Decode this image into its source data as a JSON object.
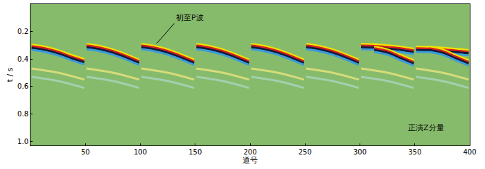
{
  "chart_data": {
    "type": "line",
    "color": "#86bb6c",
    "x_label": "道号",
    "y_label": "t / s",
    "xlim": [
      0,
      400
    ],
    "ylim": [
      1.03,
      0
    ],
    "xticks": [
      50,
      100,
      150,
      200,
      250,
      300,
      350,
      400
    ],
    "yticks": [
      0.2,
      0.4,
      0.6,
      0.8,
      {
        "value": 1,
        "label": "1.0"
      }
    ],
    "grid": false,
    "annotations": [
      {
        "text": "初至P波",
        "x": 115,
        "y": 0.286,
        "text_x": 131,
        "text_y": 0.14
      },
      {
        "text": "正演Z分量",
        "x": 360,
        "y": 0.9
      }
    ],
    "series": [
      {
        "color": "#d6dc7a",
        "x": [
          1,
          25,
          49
        ],
        "values": [
          0.47,
          0.5,
          0.55
        ]
      },
      {
        "color": "#a3d0ae",
        "x": [
          1,
          25,
          49
        ],
        "values": [
          0.53,
          0.56,
          0.61
        ]
      },
      {
        "color": "#d6dc7a",
        "x": [
          51,
          75,
          99
        ],
        "values": [
          0.47,
          0.5,
          0.55
        ]
      },
      {
        "color": "#a3d0ae",
        "x": [
          51,
          75,
          99
        ],
        "values": [
          0.53,
          0.56,
          0.61
        ]
      },
      {
        "color": "#d6dc7a",
        "x": [
          101,
          125,
          149
        ],
        "values": [
          0.47,
          0.5,
          0.55
        ]
      },
      {
        "color": "#a3d0ae",
        "x": [
          101,
          125,
          149
        ],
        "values": [
          0.53,
          0.56,
          0.61
        ]
      },
      {
        "color": "#d6dc7a",
        "x": [
          151,
          175,
          199
        ],
        "values": [
          0.47,
          0.5,
          0.55
        ]
      },
      {
        "color": "#a3d0ae",
        "x": [
          151,
          175,
          199
        ],
        "values": [
          0.53,
          0.56,
          0.61
        ]
      },
      {
        "color": "#d6dc7a",
        "x": [
          201,
          225,
          249
        ],
        "values": [
          0.47,
          0.5,
          0.55
        ]
      },
      {
        "color": "#a3d0ae",
        "x": [
          201,
          225,
          249
        ],
        "values": [
          0.53,
          0.56,
          0.61
        ]
      },
      {
        "color": "#d6dc7a",
        "x": [
          251,
          275,
          299
        ],
        "values": [
          0.47,
          0.5,
          0.55
        ]
      },
      {
        "color": "#a3d0ae",
        "x": [
          251,
          275,
          299
        ],
        "values": [
          0.53,
          0.56,
          0.61
        ]
      },
      {
        "color": "#d6dc7a",
        "x": [
          301,
          325,
          349
        ],
        "values": [
          0.47,
          0.5,
          0.55
        ]
      },
      {
        "color": "#a3d0ae",
        "x": [
          301,
          325,
          349
        ],
        "values": [
          0.53,
          0.56,
          0.61
        ]
      },
      {
        "color": "#d6dc7a",
        "x": [
          351,
          375,
          399
        ],
        "values": [
          0.47,
          0.5,
          0.55
        ]
      },
      {
        "color": "#a3d0ae",
        "x": [
          351,
          375,
          399
        ],
        "values": [
          0.53,
          0.56,
          0.61
        ]
      },
      {
        "color": "#f2e200",
        "x": [
          1,
          13,
          25,
          37,
          49
        ],
        "values": [
          0.295,
          0.31,
          0.335,
          0.37,
          0.4
        ]
      },
      {
        "color": "#d42020",
        "x": [
          1,
          13,
          25,
          37,
          49
        ],
        "values": [
          0.307,
          0.322,
          0.347,
          0.382,
          0.412
        ]
      },
      {
        "color": "#121a3a",
        "x": [
          1,
          13,
          25,
          37,
          49
        ],
        "values": [
          0.319,
          0.334,
          0.359,
          0.394,
          0.424
        ]
      },
      {
        "color": "#3c9bd8",
        "x": [
          1,
          13,
          25,
          37,
          49
        ],
        "values": [
          0.333,
          0.348,
          0.373,
          0.408,
          0.438
        ]
      },
      {
        "color": "#f2e200",
        "x": [
          51,
          63,
          75,
          87,
          99
        ],
        "values": [
          0.29,
          0.305,
          0.33,
          0.365,
          0.405
        ]
      },
      {
        "color": "#d42020",
        "x": [
          51,
          63,
          75,
          87,
          99
        ],
        "values": [
          0.302,
          0.317,
          0.342,
          0.377,
          0.417
        ]
      },
      {
        "color": "#121a3a",
        "x": [
          51,
          63,
          75,
          87,
          99
        ],
        "values": [
          0.314,
          0.329,
          0.354,
          0.389,
          0.429
        ]
      },
      {
        "color": "#3c9bd8",
        "x": [
          51,
          63,
          75,
          87,
          99
        ],
        "values": [
          0.328,
          0.343,
          0.368,
          0.403,
          0.443
        ]
      },
      {
        "color": "#f2e200",
        "x": [
          101,
          113,
          125,
          137,
          149
        ],
        "values": [
          0.29,
          0.305,
          0.33,
          0.365,
          0.405
        ]
      },
      {
        "color": "#d42020",
        "x": [
          101,
          113,
          125,
          137,
          149
        ],
        "values": [
          0.302,
          0.317,
          0.342,
          0.377,
          0.417
        ]
      },
      {
        "color": "#121a3a",
        "x": [
          101,
          113,
          125,
          137,
          149
        ],
        "values": [
          0.314,
          0.329,
          0.354,
          0.389,
          0.429
        ]
      },
      {
        "color": "#3c9bd8",
        "x": [
          101,
          113,
          125,
          137,
          149
        ],
        "values": [
          0.328,
          0.343,
          0.368,
          0.403,
          0.443
        ]
      },
      {
        "color": "#f2e200",
        "x": [
          151,
          163,
          175,
          187,
          199
        ],
        "values": [
          0.29,
          0.305,
          0.33,
          0.365,
          0.405
        ]
      },
      {
        "color": "#d42020",
        "x": [
          151,
          163,
          175,
          187,
          199
        ],
        "values": [
          0.302,
          0.317,
          0.342,
          0.377,
          0.417
        ]
      },
      {
        "color": "#121a3a",
        "x": [
          151,
          163,
          175,
          187,
          199
        ],
        "values": [
          0.314,
          0.329,
          0.354,
          0.389,
          0.429
        ]
      },
      {
        "color": "#3c9bd8",
        "x": [
          151,
          163,
          175,
          187,
          199
        ],
        "values": [
          0.328,
          0.343,
          0.368,
          0.403,
          0.443
        ]
      },
      {
        "color": "#f2e200",
        "x": [
          201,
          213,
          225,
          237,
          249
        ],
        "values": [
          0.29,
          0.305,
          0.33,
          0.365,
          0.405
        ]
      },
      {
        "color": "#d42020",
        "x": [
          201,
          213,
          225,
          237,
          249
        ],
        "values": [
          0.302,
          0.317,
          0.342,
          0.377,
          0.417
        ]
      },
      {
        "color": "#121a3a",
        "x": [
          201,
          213,
          225,
          237,
          249
        ],
        "values": [
          0.314,
          0.329,
          0.354,
          0.389,
          0.429
        ]
      },
      {
        "color": "#3c9bd8",
        "x": [
          201,
          213,
          225,
          237,
          249
        ],
        "values": [
          0.328,
          0.343,
          0.368,
          0.403,
          0.443
        ]
      },
      {
        "color": "#f2e200",
        "x": [
          251,
          263,
          275,
          287,
          299
        ],
        "values": [
          0.29,
          0.305,
          0.33,
          0.365,
          0.405
        ]
      },
      {
        "color": "#d42020",
        "x": [
          251,
          263,
          275,
          287,
          299
        ],
        "values": [
          0.302,
          0.317,
          0.342,
          0.377,
          0.417
        ]
      },
      {
        "color": "#121a3a",
        "x": [
          251,
          263,
          275,
          287,
          299
        ],
        "values": [
          0.314,
          0.329,
          0.354,
          0.389,
          0.429
        ]
      },
      {
        "color": "#3c9bd8",
        "x": [
          251,
          263,
          275,
          287,
          299
        ],
        "values": [
          0.328,
          0.343,
          0.368,
          0.403,
          0.443
        ]
      },
      {
        "color": "#f2e200",
        "x": [
          301,
          313,
          325,
          337,
          349
        ],
        "values": [
          0.29,
          0.293,
          0.3,
          0.31,
          0.325
        ]
      },
      {
        "color": "#d42020",
        "x": [
          301,
          313,
          325,
          337,
          349
        ],
        "values": [
          0.302,
          0.305,
          0.312,
          0.322,
          0.337
        ]
      },
      {
        "color": "#121a3a",
        "x": [
          301,
          313,
          325,
          337,
          349
        ],
        "values": [
          0.314,
          0.317,
          0.324,
          0.334,
          0.349
        ]
      },
      {
        "color": "#3c9bd8",
        "x": [
          301,
          313,
          325,
          337,
          349
        ],
        "values": [
          0.328,
          0.331,
          0.338,
          0.348,
          0.363
        ]
      },
      {
        "color": "#f2e200",
        "x": [
          313,
          325,
          337,
          349
        ],
        "values": [
          0.31,
          0.33,
          0.37,
          0.41
        ]
      },
      {
        "color": "#d42020",
        "x": [
          313,
          325,
          337,
          349
        ],
        "values": [
          0.322,
          0.342,
          0.382,
          0.422
        ]
      },
      {
        "color": "#121a3a",
        "x": [
          313,
          325,
          337,
          349
        ],
        "values": [
          0.334,
          0.354,
          0.394,
          0.434
        ]
      },
      {
        "color": "#3c9bd8",
        "x": [
          313,
          325,
          337,
          349
        ],
        "values": [
          0.348,
          0.368,
          0.408,
          0.448
        ]
      },
      {
        "color": "#f2e200",
        "x": [
          351,
          363,
          375,
          387,
          399
        ],
        "values": [
          0.31,
          0.312,
          0.318,
          0.326,
          0.335
        ]
      },
      {
        "color": "#d42020",
        "x": [
          351,
          363,
          375,
          387,
          399
        ],
        "values": [
          0.322,
          0.324,
          0.33,
          0.338,
          0.347
        ]
      },
      {
        "color": "#121a3a",
        "x": [
          351,
          363,
          375,
          387,
          399
        ],
        "values": [
          0.334,
          0.336,
          0.342,
          0.35,
          0.359
        ]
      },
      {
        "color": "#3c9bd8",
        "x": [
          351,
          363,
          375,
          387,
          399
        ],
        "values": [
          0.348,
          0.35,
          0.356,
          0.364,
          0.373
        ]
      },
      {
        "color": "#f2e200",
        "x": [
          363,
          375,
          387,
          399
        ],
        "values": [
          0.31,
          0.33,
          0.37,
          0.41
        ]
      },
      {
        "color": "#d42020",
        "x": [
          363,
          375,
          387,
          399
        ],
        "values": [
          0.322,
          0.342,
          0.382,
          0.422
        ]
      },
      {
        "color": "#121a3a",
        "x": [
          363,
          375,
          387,
          399
        ],
        "values": [
          0.334,
          0.354,
          0.394,
          0.434
        ]
      },
      {
        "color": "#3c9bd8",
        "x": [
          363,
          375,
          387,
          399
        ],
        "values": [
          0.348,
          0.368,
          0.408,
          0.448
        ]
      }
    ]
  }
}
